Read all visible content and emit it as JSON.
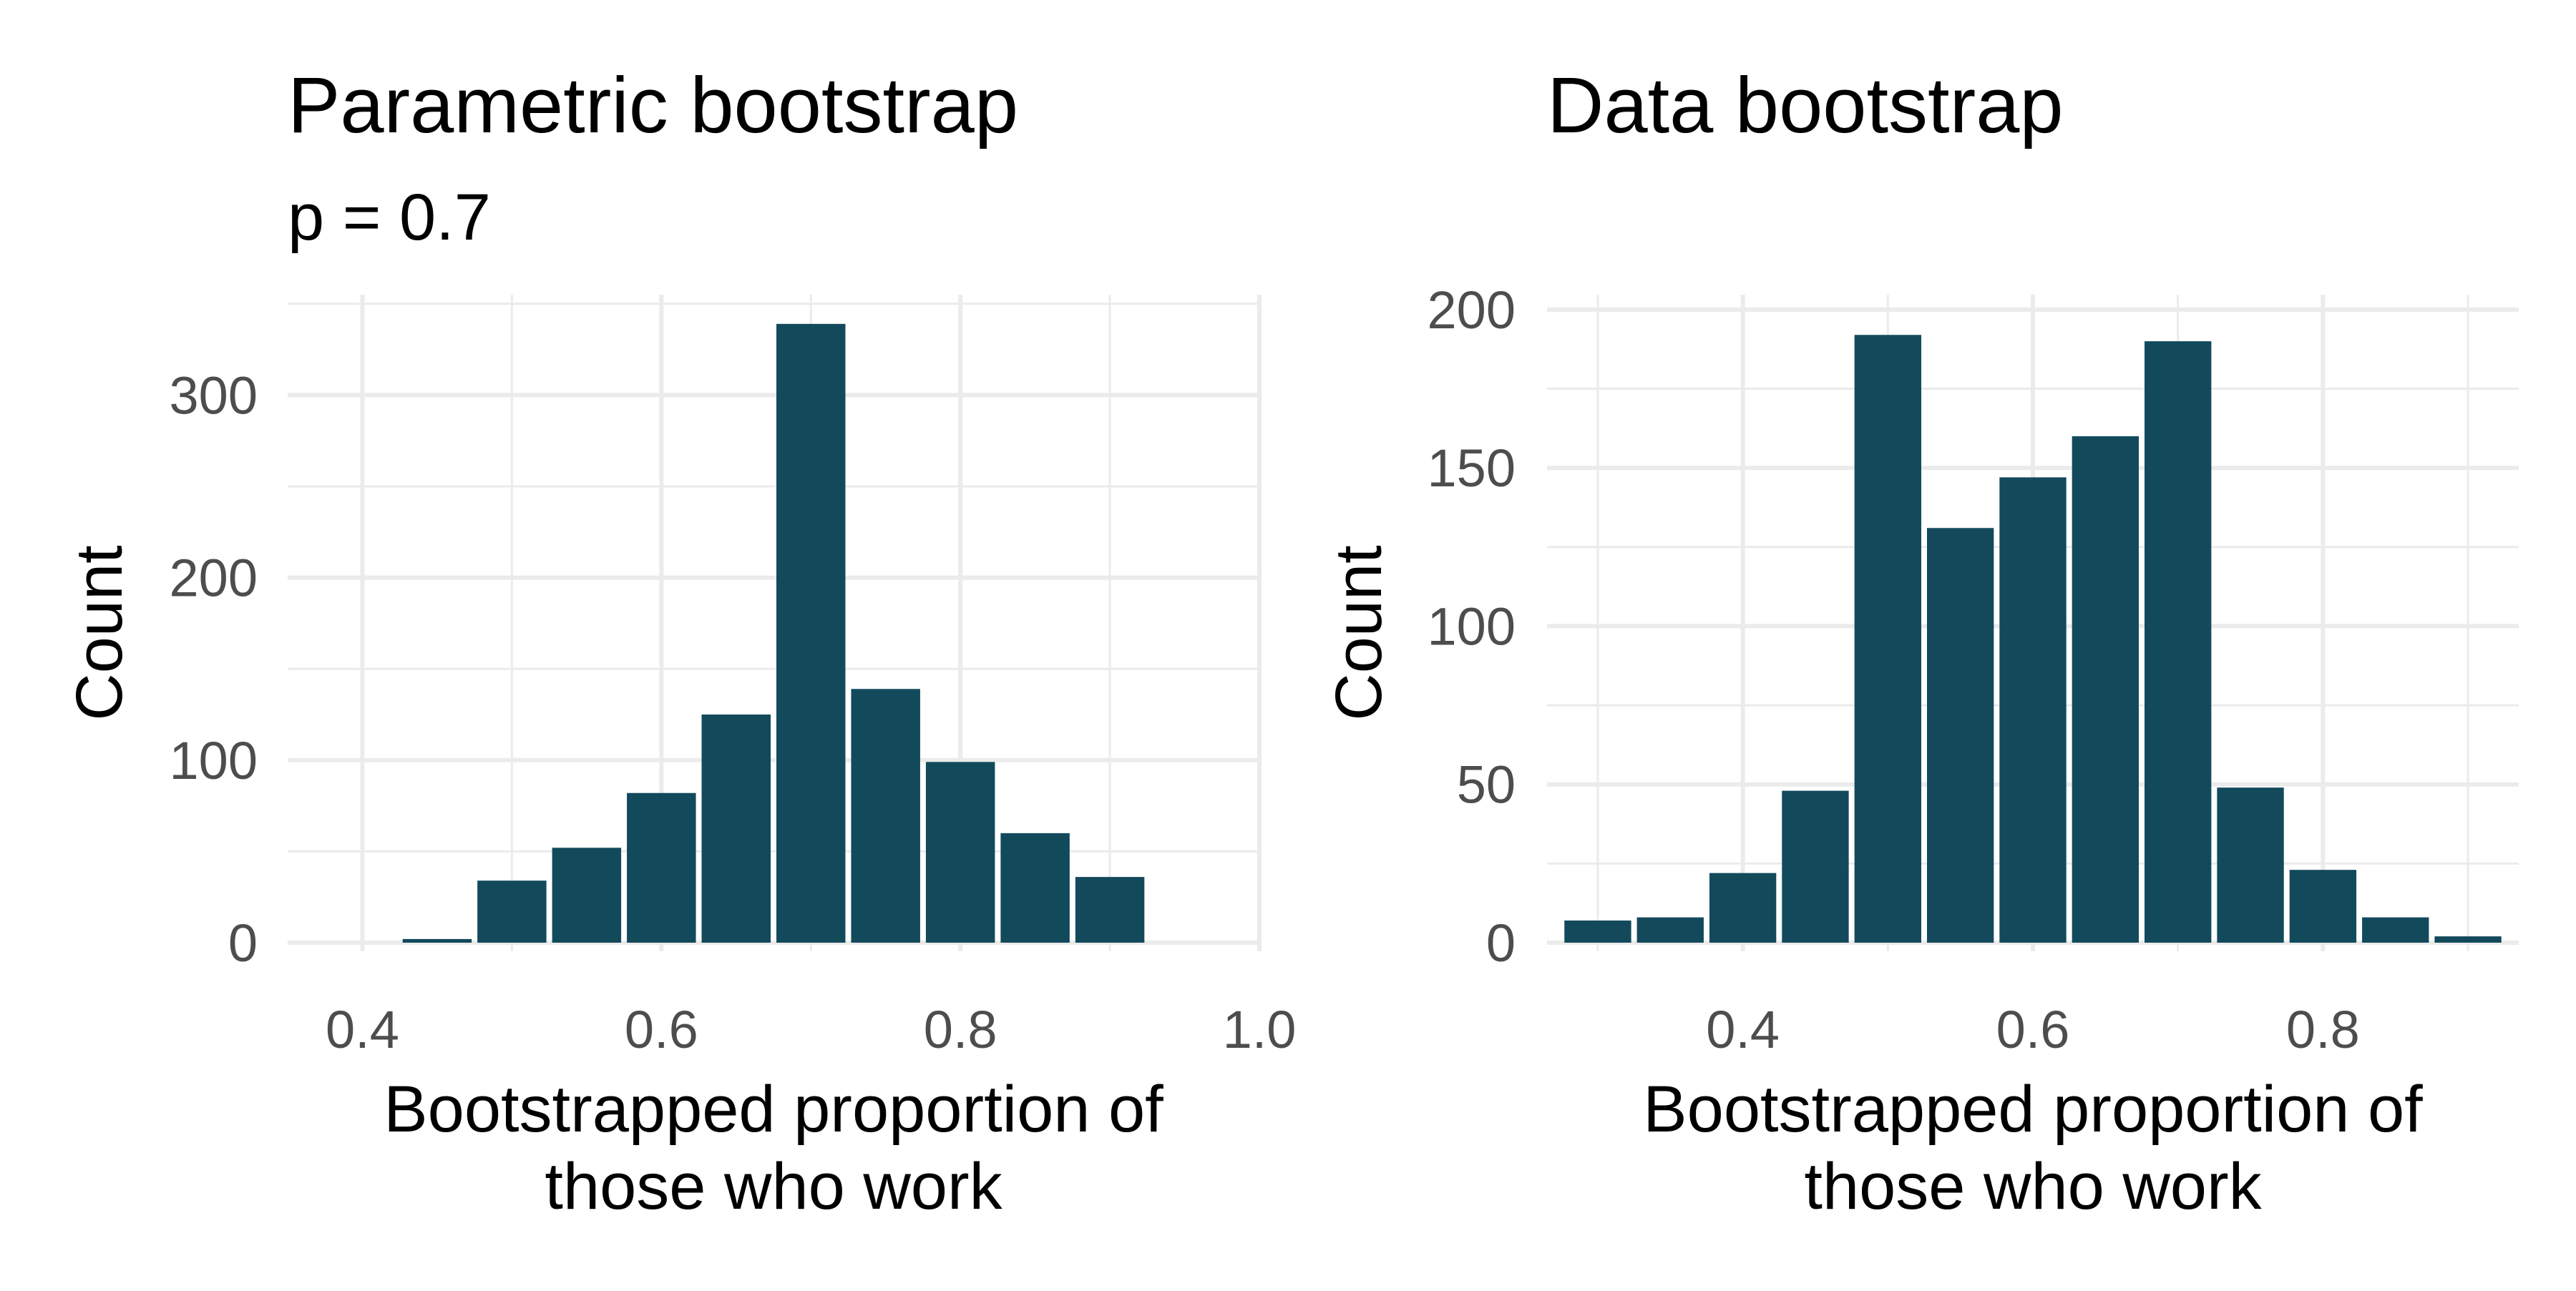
{
  "style": {
    "bar_color": "#124a5c",
    "grid_color": "#ebebeb",
    "tick_label_color": "#4d4d4d",
    "background": "#ffffff"
  },
  "chart_data": [
    {
      "type": "bar",
      "title": "Parametric bootstrap",
      "subtitle": "p = 0.7",
      "xlabel": [
        "Bootstrapped proportion of",
        "those who work"
      ],
      "ylabel": "Count",
      "xlim": [
        0.35,
        1.0
      ],
      "ylim": [
        0,
        355
      ],
      "x_ticks": [
        0.4,
        0.6,
        0.8,
        1.0
      ],
      "x_tick_labels": [
        "0.4",
        "0.6",
        "0.8",
        "1.0"
      ],
      "y_ticks": [
        0,
        100,
        200,
        300
      ],
      "y_tick_labels": [
        "0",
        "100",
        "200",
        "300"
      ],
      "grid": true,
      "bin_width": 0.05,
      "bins": [
        {
          "center": 0.4,
          "count": 0
        },
        {
          "center": 0.45,
          "count": 2
        },
        {
          "center": 0.5,
          "count": 34
        },
        {
          "center": 0.55,
          "count": 52
        },
        {
          "center": 0.6,
          "count": 82
        },
        {
          "center": 0.65,
          "count": 125
        },
        {
          "center": 0.7,
          "count": 339
        },
        {
          "center": 0.75,
          "count": 139
        },
        {
          "center": 0.8,
          "count": 99
        },
        {
          "center": 0.85,
          "count": 60
        },
        {
          "center": 0.9,
          "count": 36
        },
        {
          "center": 0.95,
          "count": 0
        }
      ]
    },
    {
      "type": "bar",
      "title": "Data bootstrap",
      "subtitle": "",
      "xlabel": [
        "Bootstrapped proportion of",
        "those who work"
      ],
      "ylabel": "Count",
      "xlim": [
        0.265,
        0.935
      ],
      "ylim": [
        0,
        202
      ],
      "x_ticks": [
        0.4,
        0.6,
        0.8
      ],
      "x_tick_labels": [
        "0.4",
        "0.6",
        "0.8"
      ],
      "y_ticks": [
        0,
        50,
        100,
        150,
        200
      ],
      "y_tick_labels": [
        "0",
        "50",
        "100",
        "150",
        "200"
      ],
      "grid": true,
      "bin_width": 0.05,
      "bins": [
        {
          "center": 0.3,
          "count": 7
        },
        {
          "center": 0.35,
          "count": 8
        },
        {
          "center": 0.4,
          "count": 22
        },
        {
          "center": 0.45,
          "count": 48
        },
        {
          "center": 0.5,
          "count": 192
        },
        {
          "center": 0.55,
          "count": 131
        },
        {
          "center": 0.6,
          "count": 147
        },
        {
          "center": 0.65,
          "count": 160
        },
        {
          "center": 0.7,
          "count": 190
        },
        {
          "center": 0.75,
          "count": 49
        },
        {
          "center": 0.8,
          "count": 23
        },
        {
          "center": 0.85,
          "count": 8
        },
        {
          "center": 0.9,
          "count": 2
        }
      ]
    }
  ]
}
